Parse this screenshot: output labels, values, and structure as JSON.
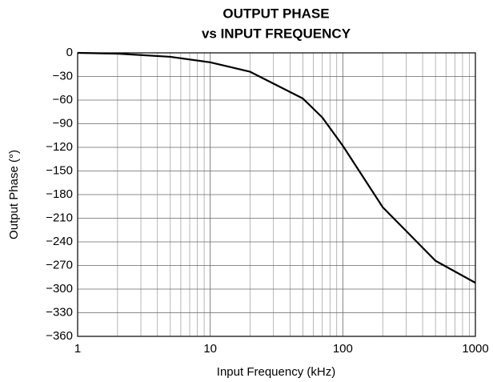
{
  "chart_data": {
    "type": "line",
    "title": [
      "OUTPUT PHASE",
      "vs INPUT FREQUENCY"
    ],
    "xlabel": "Input Frequency (kHz)",
    "ylabel": "Output Phase (°)",
    "xscale": "log",
    "x": [
      1,
      2,
      5,
      10,
      20,
      50,
      70,
      100,
      200,
      500,
      1000
    ],
    "series": [
      {
        "color": "#000000",
        "values": [
          0,
          -1,
          -5,
          -12,
          -24,
          -58,
          -82,
          -118,
          -196,
          -264,
          -292
        ]
      }
    ],
    "xlim": [
      1,
      1000
    ],
    "ylim": [
      -360,
      0
    ],
    "xticks": [
      1,
      10,
      100,
      1000
    ],
    "xminorticks": [
      2,
      3,
      4,
      5,
      6,
      7,
      8,
      9,
      20,
      30,
      40,
      50,
      60,
      70,
      80,
      90,
      200,
      300,
      400,
      500,
      600,
      700,
      800,
      900
    ],
    "yticks": [
      0,
      {
        "value": -30,
        "label": "−30"
      },
      {
        "value": -60,
        "label": "−60"
      },
      {
        "value": -90,
        "label": "−90"
      },
      {
        "value": -120,
        "label": "−120"
      },
      {
        "value": -150,
        "label": "−150"
      },
      {
        "value": -180,
        "label": "−180"
      },
      {
        "value": -210,
        "label": "−210"
      },
      {
        "value": -240,
        "label": "−240"
      },
      {
        "value": -270,
        "label": "−270"
      },
      {
        "value": -300,
        "label": "−300"
      },
      {
        "value": -330,
        "label": "−330"
      },
      {
        "value": -360,
        "label": "−360"
      }
    ],
    "grid": true
  }
}
